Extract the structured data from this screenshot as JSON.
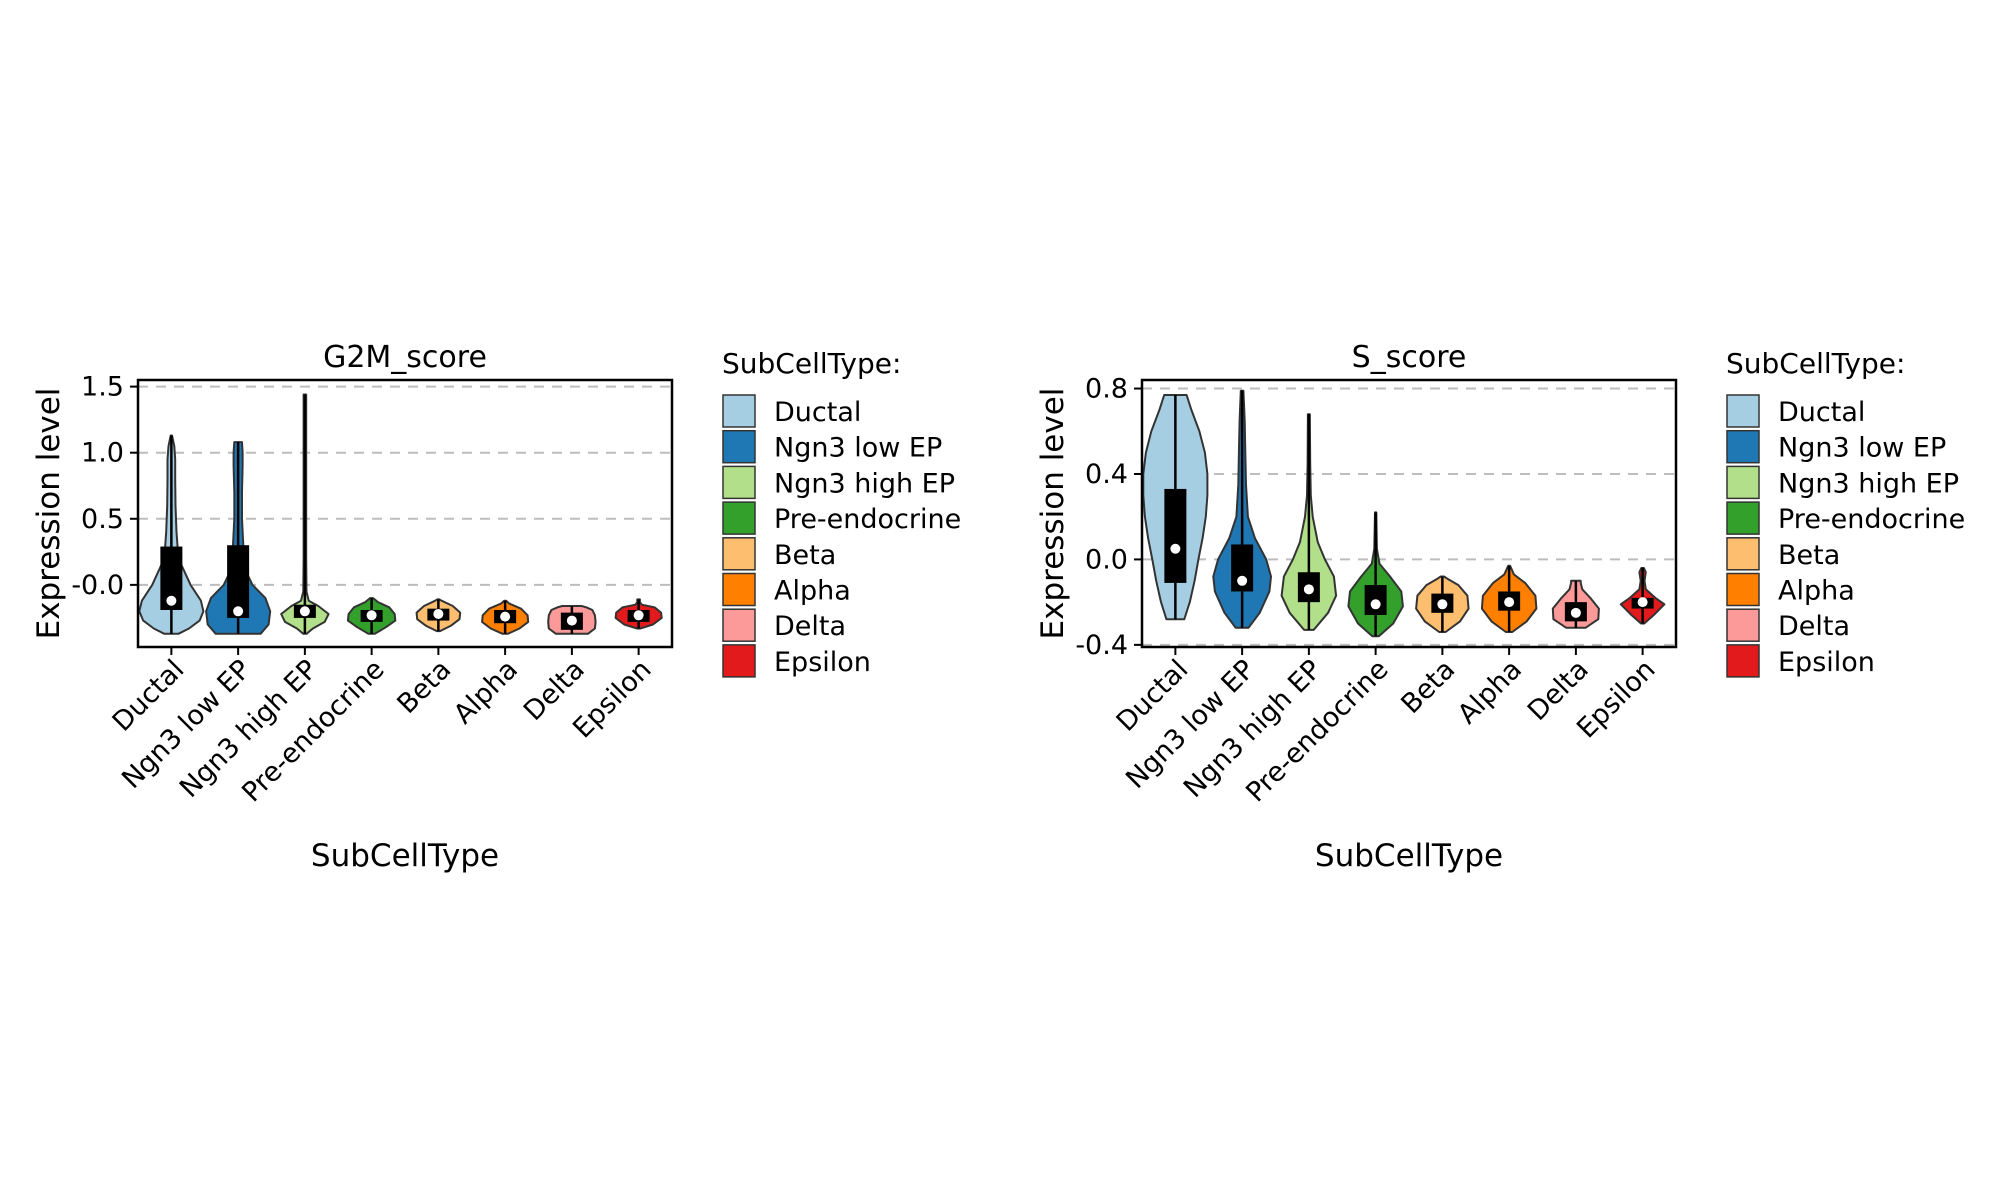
{
  "chart_data": [
    {
      "type": "violin",
      "title": "G2M_score",
      "xlabel": "SubCellType",
      "ylabel": "Expression level",
      "ylim": [
        -0.47,
        1.55
      ],
      "yticks": [
        -0.0,
        0.5,
        1.0,
        1.5
      ],
      "ytick_labels": [
        "-0.0",
        "0.5",
        "1.0",
        "1.5"
      ],
      "grid": "horizontal-dashed",
      "categories": [
        "Ductal",
        "Ngn3 low EP",
        "Ngn3 high EP",
        "Pre-endocrine",
        "Beta",
        "Alpha",
        "Delta",
        "Epsilon"
      ],
      "series": [
        {
          "category": "Ductal",
          "min": -0.37,
          "max": 1.13,
          "q1": -0.19,
          "q3": 0.29,
          "median": -0.12,
          "profile": [
            [
              -0.37,
              0.22
            ],
            [
              -0.33,
              0.55
            ],
            [
              -0.27,
              0.88
            ],
            [
              -0.2,
              1.0
            ],
            [
              -0.12,
              0.92
            ],
            [
              0.0,
              0.6
            ],
            [
              0.2,
              0.22
            ],
            [
              0.4,
              0.16
            ],
            [
              0.6,
              0.13
            ],
            [
              0.8,
              0.12
            ],
            [
              0.95,
              0.12
            ],
            [
              1.05,
              0.09
            ],
            [
              1.13,
              0.02
            ]
          ]
        },
        {
          "category": "Ngn3 low EP",
          "min": -0.37,
          "max": 1.08,
          "q1": -0.25,
          "q3": 0.3,
          "median": -0.2,
          "profile": [
            [
              -0.37,
              0.7
            ],
            [
              -0.3,
              0.95
            ],
            [
              -0.2,
              1.0
            ],
            [
              -0.1,
              0.85
            ],
            [
              0.0,
              0.45
            ],
            [
              0.1,
              0.25
            ],
            [
              0.3,
              0.16
            ],
            [
              0.5,
              0.12
            ],
            [
              0.7,
              0.12
            ],
            [
              0.9,
              0.14
            ],
            [
              1.0,
              0.14
            ],
            [
              1.08,
              0.12
            ]
          ]
        },
        {
          "category": "Ngn3 high EP",
          "min": -0.37,
          "max": 1.44,
          "q1": -0.25,
          "q3": -0.15,
          "median": -0.2,
          "profile": [
            [
              -0.37,
              0.05
            ],
            [
              -0.33,
              0.25
            ],
            [
              -0.28,
              0.62
            ],
            [
              -0.22,
              0.74
            ],
            [
              -0.16,
              0.42
            ],
            [
              -0.12,
              0.12
            ],
            [
              -0.05,
              0.05
            ],
            [
              0.2,
              0.04
            ],
            [
              0.6,
              0.04
            ],
            [
              1.0,
              0.04
            ],
            [
              1.44,
              0.04
            ]
          ]
        },
        {
          "category": "Pre-endocrine",
          "min": -0.37,
          "max": -0.1,
          "q1": -0.28,
          "q3": -0.19,
          "median": -0.23,
          "profile": [
            [
              -0.37,
              0.1
            ],
            [
              -0.32,
              0.45
            ],
            [
              -0.27,
              0.74
            ],
            [
              -0.22,
              0.72
            ],
            [
              -0.17,
              0.55
            ],
            [
              -0.13,
              0.2
            ],
            [
              -0.1,
              0.05
            ]
          ]
        },
        {
          "category": "Beta",
          "min": -0.35,
          "max": -0.11,
          "q1": -0.27,
          "q3": -0.18,
          "median": -0.22,
          "profile": [
            [
              -0.35,
              0.05
            ],
            [
              -0.31,
              0.38
            ],
            [
              -0.26,
              0.66
            ],
            [
              -0.21,
              0.68
            ],
            [
              -0.16,
              0.45
            ],
            [
              -0.12,
              0.1
            ],
            [
              -0.11,
              0.03
            ]
          ]
        },
        {
          "category": "Alpha",
          "min": -0.37,
          "max": -0.12,
          "q1": -0.29,
          "q3": -0.19,
          "median": -0.24,
          "profile": [
            [
              -0.37,
              0.08
            ],
            [
              -0.33,
              0.45
            ],
            [
              -0.28,
              0.72
            ],
            [
              -0.23,
              0.7
            ],
            [
              -0.18,
              0.5
            ],
            [
              -0.14,
              0.12
            ],
            [
              -0.12,
              0.03
            ]
          ]
        },
        {
          "category": "Delta",
          "min": -0.37,
          "max": -0.16,
          "q1": -0.34,
          "q3": -0.21,
          "median": -0.27,
          "profile": [
            [
              -0.37,
              0.5
            ],
            [
              -0.33,
              0.72
            ],
            [
              -0.28,
              0.74
            ],
            [
              -0.23,
              0.72
            ],
            [
              -0.19,
              0.64
            ],
            [
              -0.17,
              0.45
            ],
            [
              -0.16,
              0.3
            ]
          ]
        },
        {
          "category": "Epsilon",
          "min": -0.33,
          "max": -0.11,
          "q1": -0.28,
          "q3": -0.19,
          "median": -0.23,
          "profile": [
            [
              -0.33,
              0.05
            ],
            [
              -0.3,
              0.45
            ],
            [
              -0.25,
              0.72
            ],
            [
              -0.21,
              0.7
            ],
            [
              -0.17,
              0.5
            ],
            [
              -0.15,
              0.1
            ],
            [
              -0.13,
              0.04
            ],
            [
              -0.11,
              0.04
            ]
          ]
        }
      ]
    },
    {
      "type": "violin",
      "title": "S_score",
      "xlabel": "SubCellType",
      "ylabel": "Expression level",
      "ylim": [
        -0.41,
        0.84
      ],
      "yticks": [
        -0.4,
        0.0,
        0.4,
        0.8
      ],
      "ytick_labels": [
        "-0.4",
        "0.0",
        "0.4",
        "0.8"
      ],
      "grid": "horizontal-dashed",
      "categories": [
        "Ductal",
        "Ngn3 low EP",
        "Ngn3 high EP",
        "Pre-endocrine",
        "Beta",
        "Alpha",
        "Delta",
        "Epsilon"
      ],
      "series": [
        {
          "category": "Ductal",
          "min": -0.28,
          "max": 0.77,
          "q1": -0.11,
          "q3": 0.33,
          "median": 0.05,
          "profile": [
            [
              -0.28,
              0.28
            ],
            [
              -0.2,
              0.45
            ],
            [
              -0.1,
              0.6
            ],
            [
              0.0,
              0.72
            ],
            [
              0.1,
              0.85
            ],
            [
              0.2,
              0.95
            ],
            [
              0.3,
              1.0
            ],
            [
              0.4,
              1.0
            ],
            [
              0.5,
              0.92
            ],
            [
              0.6,
              0.75
            ],
            [
              0.7,
              0.5
            ],
            [
              0.77,
              0.35
            ]
          ]
        },
        {
          "category": "Ngn3 low EP",
          "min": -0.32,
          "max": 0.79,
          "q1": -0.15,
          "q3": 0.07,
          "median": -0.1,
          "profile": [
            [
              -0.32,
              0.2
            ],
            [
              -0.25,
              0.55
            ],
            [
              -0.15,
              0.85
            ],
            [
              -0.08,
              0.9
            ],
            [
              0.0,
              0.75
            ],
            [
              0.1,
              0.4
            ],
            [
              0.2,
              0.18
            ],
            [
              0.35,
              0.12
            ],
            [
              0.5,
              0.1
            ],
            [
              0.65,
              0.08
            ],
            [
              0.79,
              0.04
            ]
          ]
        },
        {
          "category": "Ngn3 high EP",
          "min": -0.33,
          "max": 0.68,
          "q1": -0.2,
          "q3": -0.06,
          "median": -0.14,
          "profile": [
            [
              -0.33,
              0.15
            ],
            [
              -0.25,
              0.6
            ],
            [
              -0.17,
              0.85
            ],
            [
              -0.08,
              0.78
            ],
            [
              0.0,
              0.5
            ],
            [
              0.08,
              0.28
            ],
            [
              0.2,
              0.12
            ],
            [
              0.3,
              0.06
            ],
            [
              0.45,
              0.04
            ],
            [
              0.68,
              0.03
            ]
          ]
        },
        {
          "category": "Pre-endocrine",
          "min": -0.36,
          "max": 0.22,
          "q1": -0.26,
          "q3": -0.12,
          "median": -0.21,
          "profile": [
            [
              -0.36,
              0.1
            ],
            [
              -0.3,
              0.55
            ],
            [
              -0.22,
              0.85
            ],
            [
              -0.15,
              0.8
            ],
            [
              -0.08,
              0.45
            ],
            [
              -0.02,
              0.12
            ],
            [
              0.05,
              0.04
            ],
            [
              0.22,
              0.02
            ]
          ]
        },
        {
          "category": "Beta",
          "min": -0.34,
          "max": -0.08,
          "q1": -0.25,
          "q3": -0.16,
          "median": -0.21,
          "profile": [
            [
              -0.34,
              0.1
            ],
            [
              -0.29,
              0.55
            ],
            [
              -0.23,
              0.82
            ],
            [
              -0.17,
              0.78
            ],
            [
              -0.12,
              0.5
            ],
            [
              -0.09,
              0.15
            ],
            [
              -0.08,
              0.05
            ]
          ]
        },
        {
          "category": "Alpha",
          "min": -0.34,
          "max": -0.03,
          "q1": -0.24,
          "q3": -0.15,
          "median": -0.2,
          "profile": [
            [
              -0.34,
              0.1
            ],
            [
              -0.29,
              0.55
            ],
            [
              -0.23,
              0.85
            ],
            [
              -0.17,
              0.82
            ],
            [
              -0.11,
              0.5
            ],
            [
              -0.07,
              0.15
            ],
            [
              -0.03,
              0.03
            ]
          ]
        },
        {
          "category": "Delta",
          "min": -0.32,
          "max": -0.1,
          "q1": -0.29,
          "q3": -0.2,
          "median": -0.25,
          "profile": [
            [
              -0.32,
              0.3
            ],
            [
              -0.28,
              0.7
            ],
            [
              -0.23,
              0.72
            ],
            [
              -0.18,
              0.45
            ],
            [
              -0.14,
              0.2
            ],
            [
              -0.11,
              0.15
            ],
            [
              -0.1,
              0.15
            ]
          ]
        },
        {
          "category": "Epsilon",
          "min": -0.3,
          "max": -0.04,
          "q1": -0.23,
          "q3": -0.18,
          "median": -0.2,
          "profile": [
            [
              -0.3,
              0.05
            ],
            [
              -0.26,
              0.35
            ],
            [
              -0.21,
              0.68
            ],
            [
              -0.18,
              0.4
            ],
            [
              -0.14,
              0.1
            ],
            [
              -0.1,
              0.06
            ],
            [
              -0.06,
              0.1
            ],
            [
              -0.04,
              0.04
            ]
          ]
        }
      ]
    }
  ],
  "legend": {
    "title": "SubCellType:",
    "items": [
      {
        "label": "Ductal",
        "color": "#a6cee3"
      },
      {
        "label": "Ngn3 low EP",
        "color": "#1f78b4"
      },
      {
        "label": "Ngn3 high EP",
        "color": "#b2df8a"
      },
      {
        "label": "Pre-endocrine",
        "color": "#33a02c"
      },
      {
        "label": "Beta",
        "color": "#fdbf6f"
      },
      {
        "label": "Alpha",
        "color": "#ff7f00"
      },
      {
        "label": "Delta",
        "color": "#fb9a99"
      },
      {
        "label": "Epsilon",
        "color": "#e31a1c"
      }
    ]
  }
}
